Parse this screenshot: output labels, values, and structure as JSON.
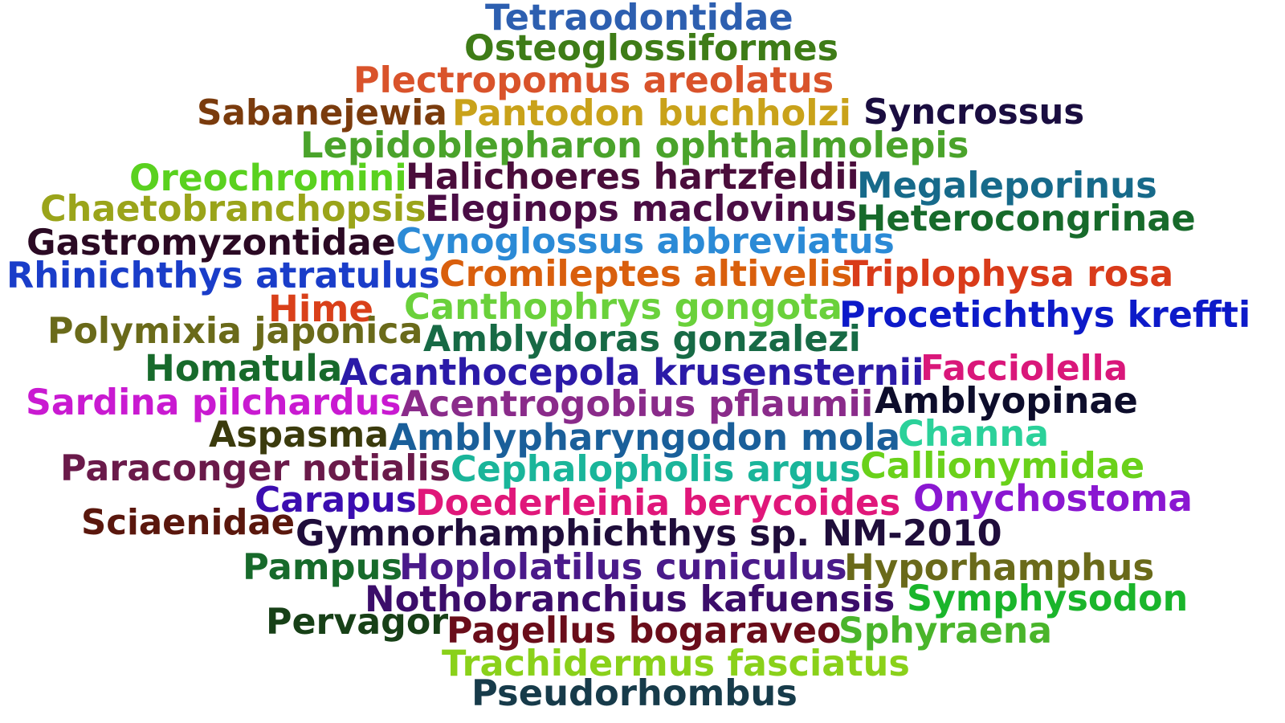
{
  "words": [
    {
      "id": "tetraodontidae",
      "text": "Tetraodontidae",
      "color": "#2d5fb0"
    },
    {
      "id": "osteoglossiformes",
      "text": "Osteoglossiformes",
      "color": "#3e7c17"
    },
    {
      "id": "plectropomus-areolatus",
      "text": "Plectropomus areolatus",
      "color": "#d9532b"
    },
    {
      "id": "sabanejewia",
      "text": "Sabanejewia",
      "color": "#7a3b0d"
    },
    {
      "id": "pantodon-buchholzi",
      "text": "Pantodon buchholzi",
      "color": "#c9a21a"
    },
    {
      "id": "syncrossus",
      "text": "Syncrossus",
      "color": "#1a0d40"
    },
    {
      "id": "lepidoblepharon-ophthalmolepis",
      "text": "Lepidoblepharon ophthalmolepis",
      "color": "#4aa32b"
    },
    {
      "id": "oreochromini",
      "text": "Oreochromini",
      "color": "#5ad11f"
    },
    {
      "id": "halichoeres-hartzfeldii",
      "text": "Halichoeres hartzfeldii",
      "color": "#4a0d3b"
    },
    {
      "id": "megaleporinus",
      "text": "Megaleporinus",
      "color": "#176a8a"
    },
    {
      "id": "chaetobranchopsis",
      "text": "Chaetobranchopsis",
      "color": "#9aa41a"
    },
    {
      "id": "eleginops-maclovinus",
      "text": "Eleginops maclovinus",
      "color": "#4a0d45"
    },
    {
      "id": "heterocongrinae",
      "text": "Heterocongrinae",
      "color": "#176a2b"
    },
    {
      "id": "gastromyzontidae",
      "text": "Gastromyzontidae",
      "color": "#2b0a24"
    },
    {
      "id": "cynoglossus-abbreviatus",
      "text": "Cynoglossus abbreviatus",
      "color": "#2b8ad6"
    },
    {
      "id": "rhinichthys-atratulus",
      "text": "Rhinichthys atratulus",
      "color": "#1a3dc9"
    },
    {
      "id": "cromileptes-altivelis",
      "text": "Cromileptes altivelis",
      "color": "#d95f0d"
    },
    {
      "id": "triplophysa-rosa",
      "text": "Triplophysa rosa",
      "color": "#d93b1a"
    },
    {
      "id": "hime",
      "text": "Hime",
      "color": "#d9401a"
    },
    {
      "id": "canthophrys-gongota",
      "text": "Canthophrys gongota",
      "color": "#6ad13b"
    },
    {
      "id": "procetichthys-kreffti",
      "text": "Procetichthys kreffti",
      "color": "#0d1ac9"
    },
    {
      "id": "polymixia-japonica",
      "text": "Polymixia japonica",
      "color": "#6a6a1a"
    },
    {
      "id": "amblydoras-gonzalezi",
      "text": "Amblydoras gonzalezi",
      "color": "#176a45"
    },
    {
      "id": "homatula",
      "text": "Homatula",
      "color": "#176a2b"
    },
    {
      "id": "acanthocepola-krusensternii",
      "text": "Acanthocepola krusensternii",
      "color": "#2b1aa8"
    },
    {
      "id": "facciolella",
      "text": "Facciolella",
      "color": "#d9177a"
    },
    {
      "id": "sardina-pilchardus",
      "text": "Sardina pilchardus",
      "color": "#c91ad1"
    },
    {
      "id": "acentrogobius-pflaumii",
      "text": "Acentrogobius pflaumii",
      "color": "#8a2b8a"
    },
    {
      "id": "amblyopinae",
      "text": "Amblyopinae",
      "color": "#0d0d2b"
    },
    {
      "id": "aspasma",
      "text": "Aspasma",
      "color": "#3b3b0d"
    },
    {
      "id": "amblypharyngodon-mola",
      "text": "Amblypharyngodon mola",
      "color": "#1a5f9a"
    },
    {
      "id": "channa",
      "text": "Channa",
      "color": "#2bd19a"
    },
    {
      "id": "paraconger-notialis",
      "text": "Paraconger notialis",
      "color": "#6a1a4a"
    },
    {
      "id": "cephalopholis-argus",
      "text": "Cephalopholis argus",
      "color": "#1ab59a"
    },
    {
      "id": "callionymidae",
      "text": "Callionymidae",
      "color": "#6ad11a"
    },
    {
      "id": "carapus",
      "text": "Carapus",
      "color": "#3b0db0"
    },
    {
      "id": "doederleinia-berycoides",
      "text": "Doederleinia berycoides",
      "color": "#e0177a"
    },
    {
      "id": "onychostoma",
      "text": "Onychostoma",
      "color": "#8a17d1"
    },
    {
      "id": "sciaenidae",
      "text": "Sciaenidae",
      "color": "#5a170d"
    },
    {
      "id": "gymnorhamphichthys",
      "text": "Gymnorhamphichthys sp. NM-2010",
      "color": "#1f0d3b"
    },
    {
      "id": "pampus",
      "text": "Pampus",
      "color": "#176a2b"
    },
    {
      "id": "hoplolatilus-cuniculus",
      "text": "Hoplolatilus cuniculus",
      "color": "#4a1a8a"
    },
    {
      "id": "hyporhamphus",
      "text": "Hyporhamphus",
      "color": "#6a6a1a"
    },
    {
      "id": "nothobranchius-kafuensis",
      "text": "Nothobranchius kafuensis",
      "color": "#3b0d6a"
    },
    {
      "id": "symphysodon",
      "text": "Symphysodon",
      "color": "#1ab52b"
    },
    {
      "id": "pervagor",
      "text": "Pervagor",
      "color": "#174017"
    },
    {
      "id": "pagellus-bogaraveo",
      "text": "Pagellus bogaraveo",
      "color": "#6a0d1a"
    },
    {
      "id": "sphyraena",
      "text": "Sphyraena",
      "color": "#4ab52b"
    },
    {
      "id": "trachidermus-fasciatus",
      "text": "Trachidermus fasciatus",
      "color": "#8ad11a"
    },
    {
      "id": "pseudorhombus",
      "text": "Pseudorhombus",
      "color": "#173b4a"
    }
  ]
}
